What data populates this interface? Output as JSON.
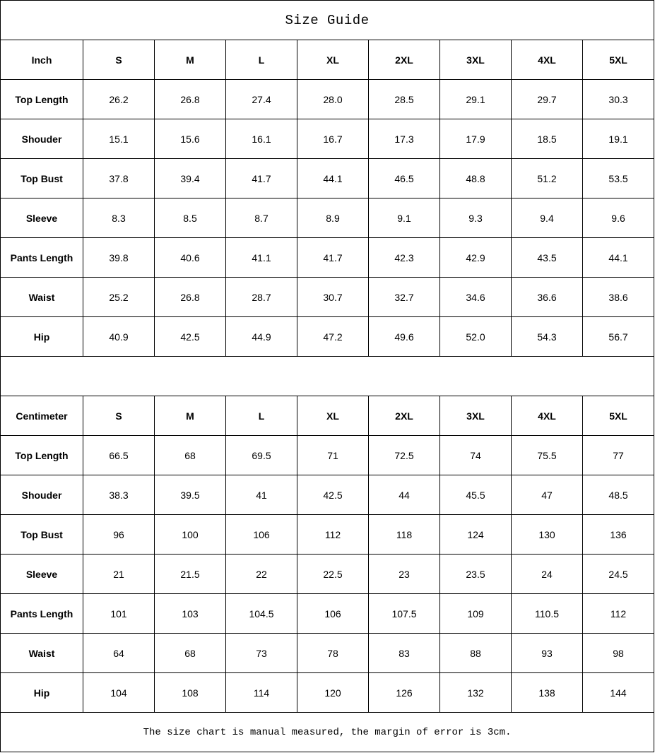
{
  "title": "Size Guide",
  "sizes": [
    "S",
    "M",
    "L",
    "XL",
    "2XL",
    "3XL",
    "4XL",
    "5XL"
  ],
  "inch": {
    "unit_label": "Inch",
    "rows": [
      {
        "label": "Top Length",
        "values": [
          "26.2",
          "26.8",
          "27.4",
          "28.0",
          "28.5",
          "29.1",
          "29.7",
          "30.3"
        ]
      },
      {
        "label": "Shouder",
        "values": [
          "15.1",
          "15.6",
          "16.1",
          "16.7",
          "17.3",
          "17.9",
          "18.5",
          "19.1"
        ]
      },
      {
        "label": "Top Bust",
        "values": [
          "37.8",
          "39.4",
          "41.7",
          "44.1",
          "46.5",
          "48.8",
          "51.2",
          "53.5"
        ]
      },
      {
        "label": "Sleeve",
        "values": [
          "8.3",
          "8.5",
          "8.7",
          "8.9",
          "9.1",
          "9.3",
          "9.4",
          "9.6"
        ]
      },
      {
        "label": "Pants Length",
        "values": [
          "39.8",
          "40.6",
          "41.1",
          "41.7",
          "42.3",
          "42.9",
          "43.5",
          "44.1"
        ]
      },
      {
        "label": "Waist",
        "values": [
          "25.2",
          "26.8",
          "28.7",
          "30.7",
          "32.7",
          "34.6",
          "36.6",
          "38.6"
        ]
      },
      {
        "label": "Hip",
        "values": [
          "40.9",
          "42.5",
          "44.9",
          "47.2",
          "49.6",
          "52.0",
          "54.3",
          "56.7"
        ]
      }
    ]
  },
  "centimeter": {
    "unit_label": "Centimeter",
    "rows": [
      {
        "label": "Top Length",
        "values": [
          "66.5",
          "68",
          "69.5",
          "71",
          "72.5",
          "74",
          "75.5",
          "77"
        ]
      },
      {
        "label": "Shouder",
        "values": [
          "38.3",
          "39.5",
          "41",
          "42.5",
          "44",
          "45.5",
          "47",
          "48.5"
        ]
      },
      {
        "label": "Top Bust",
        "values": [
          "96",
          "100",
          "106",
          "112",
          "118",
          "124",
          "130",
          "136"
        ]
      },
      {
        "label": "Sleeve",
        "values": [
          "21",
          "21.5",
          "22",
          "22.5",
          "23",
          "23.5",
          "24",
          "24.5"
        ]
      },
      {
        "label": "Pants Length",
        "values": [
          "101",
          "103",
          "104.5",
          "106",
          "107.5",
          "109",
          "110.5",
          "112"
        ]
      },
      {
        "label": "Waist",
        "values": [
          "64",
          "68",
          "73",
          "78",
          "83",
          "88",
          "93",
          "98"
        ]
      },
      {
        "label": "Hip",
        "values": [
          "104",
          "108",
          "114",
          "120",
          "126",
          "132",
          "138",
          "144"
        ]
      }
    ]
  },
  "footer_note": "The size chart is manual measured, the margin of error is 3cm."
}
